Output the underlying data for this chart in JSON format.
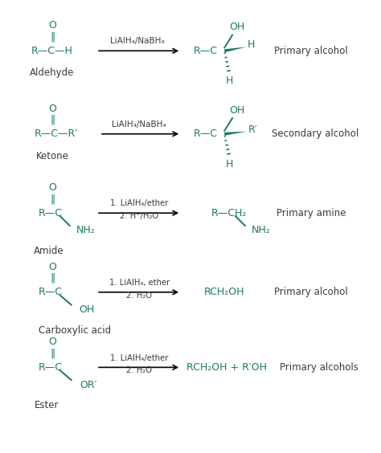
{
  "bg_color": "#ffffff",
  "teal": "#1a7a5e",
  "dark": "#3a3a3a",
  "rows": [
    {
      "label": "Aldehyde",
      "product_label": "Primary alcohol",
      "reagent1": "LiAlH₄/NaBH₄",
      "reagent2": null
    },
    {
      "label": "Ketone",
      "product_label": "Secondary alcohol",
      "reagent1": "LiAlH₄/NaBH₄",
      "reagent2": null
    },
    {
      "label": "Amide",
      "product_label": "Primary amine",
      "reagent1": "1. LiAlH₄/ether",
      "reagent2": "2. H⁺/H₂O"
    },
    {
      "label": "Carboxylic acid",
      "product_label": "Primary alcohol",
      "reagent1": "1. LiAlH₄, ether",
      "reagent2": "2. H₂O"
    },
    {
      "label": "Ester",
      "product_label": "Primary alcohols",
      "reagent1": "1. LiAlH₄/ether",
      "reagent2": "2. H₂O"
    }
  ]
}
